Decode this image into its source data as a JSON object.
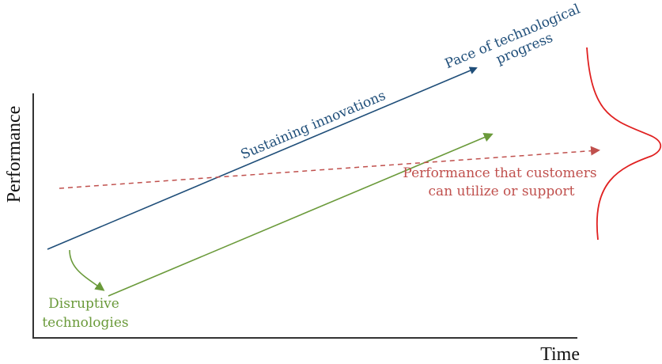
{
  "axes": {
    "y_label": "Performance",
    "x_label": "Time"
  },
  "labels": {
    "sustaining": "Sustaining innovations",
    "pace_line1": "Pace of technological",
    "pace_line2": "progress",
    "customers_line1": "Performance that customers",
    "customers_line2": "can utilize or support",
    "disruptive_line1": "Disruptive",
    "disruptive_line2": "technologies"
  },
  "colors": {
    "sustaining": "#1f4e79",
    "disruptive": "#6a9a3a",
    "customers": "#c0504d",
    "distribution": "#e02020",
    "axis": "#333333"
  }
}
